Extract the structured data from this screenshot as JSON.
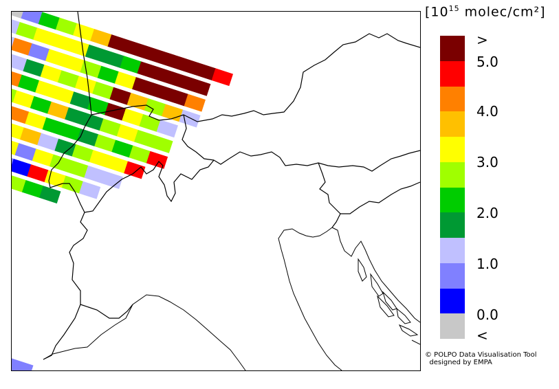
{
  "legend": {
    "title_prefix": "[10",
    "title_exponent": "15",
    "title_suffix": " molec/cm²]",
    "colors": [
      "#7a0000",
      "#ff0000",
      "#ff8000",
      "#ffc000",
      "#ffff00",
      "#a0ff00",
      "#00cc00",
      "#009933",
      "#c0c0ff",
      "#8080ff",
      "#0000ff",
      "#c8c8c8"
    ],
    "labels": [
      ">",
      "5.0",
      "4.0",
      "3.0",
      "2.0",
      "1.0",
      "0.0",
      "<"
    ]
  },
  "credit": {
    "line1": "© POLPO Data Visualisation Tool",
    "line2": "designed by EMPA"
  },
  "swath_rows": [
    [
      11,
      9,
      6,
      5,
      4,
      3,
      0,
      0,
      0,
      0,
      0,
      0,
      1
    ],
    [
      8,
      5,
      4,
      4,
      4,
      7,
      7,
      6,
      0,
      0,
      0,
      0
    ],
    [
      8,
      2,
      9,
      4,
      4,
      5,
      6,
      4,
      0,
      0,
      0,
      2
    ],
    [
      4,
      8,
      7,
      4,
      5,
      4,
      5,
      0,
      3,
      5,
      3,
      8
    ],
    [
      5,
      2,
      6,
      4,
      4,
      7,
      6,
      0,
      4,
      5,
      8
    ],
    [
      9,
      5,
      4,
      6,
      3,
      7,
      7,
      5,
      4,
      5,
      5
    ],
    [
      8,
      3,
      2,
      4,
      6,
      6,
      7,
      5,
      6,
      5,
      1
    ],
    [
      5,
      5,
      4,
      3,
      8,
      7,
      5,
      4,
      4,
      1
    ],
    [
      1,
      6,
      4,
      9,
      4,
      5,
      5,
      8,
      8
    ],
    [
      5,
      8,
      9,
      10,
      1,
      4,
      5,
      8
    ],
    [
      4,
      6,
      6,
      5,
      6,
      7
    ]
  ]
}
